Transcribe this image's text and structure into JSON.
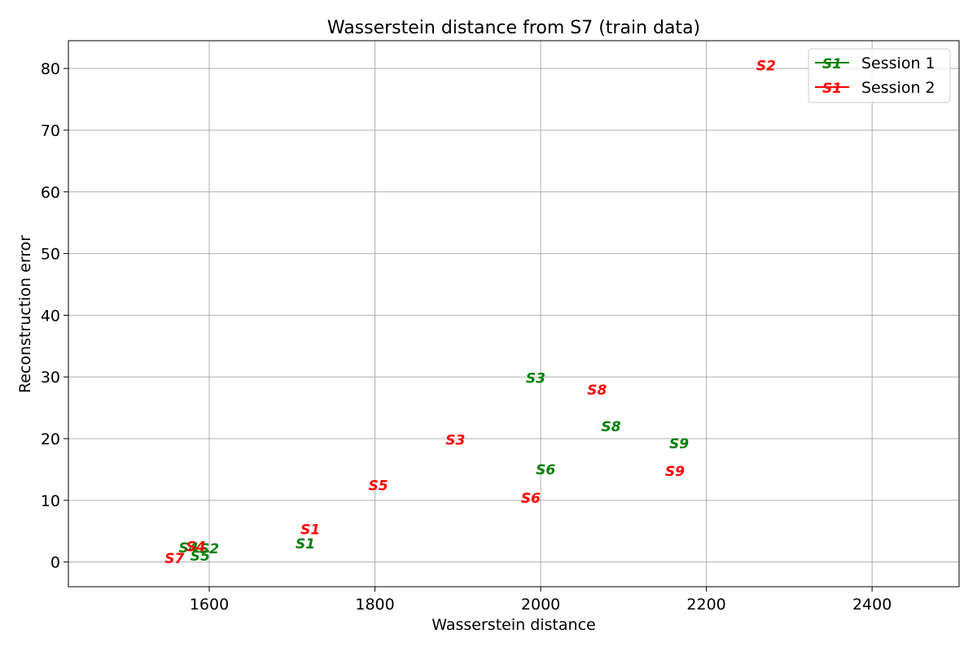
{
  "chart_data": {
    "type": "scatter",
    "title": "Wasserstein distance from S7 (train data)",
    "xlabel": "Wasserstein distance",
    "ylabel": "Reconstruction error",
    "xlim": [
      1430,
      2505
    ],
    "ylim": [
      -4,
      84.5
    ],
    "xticks": [
      1600,
      1800,
      2000,
      2200,
      2400
    ],
    "yticks": [
      0,
      10,
      20,
      30,
      40,
      50,
      60,
      70,
      80
    ],
    "grid": true,
    "legend_position": "top-right",
    "legend_marker_text": "S1",
    "series": [
      {
        "name": "Session 1",
        "color": "#008000",
        "points": [
          {
            "label": "S1",
            "x": 1716,
            "y": 3.0
          },
          {
            "label": "S2",
            "x": 1600,
            "y": 2.2
          },
          {
            "label": "S3",
            "x": 1994,
            "y": 29.8
          },
          {
            "label": "S4",
            "x": 1575,
            "y": 2.3
          },
          {
            "label": "S5",
            "x": 1589,
            "y": 1.0
          },
          {
            "label": "S6",
            "x": 2006,
            "y": 15.0
          },
          {
            "label": "S8",
            "x": 2085,
            "y": 22.0
          },
          {
            "label": "S9",
            "x": 2167,
            "y": 19.2
          }
        ]
      },
      {
        "name": "Session 2",
        "color": "#ff0000",
        "points": [
          {
            "label": "S1",
            "x": 1722,
            "y": 5.3
          },
          {
            "label": "S2",
            "x": 2272,
            "y": 80.5
          },
          {
            "label": "S3",
            "x": 1897,
            "y": 19.8
          },
          {
            "label": "S4",
            "x": 1584,
            "y": 2.5
          },
          {
            "label": "S5",
            "x": 1804,
            "y": 12.4
          },
          {
            "label": "S6",
            "x": 1988,
            "y": 10.4
          },
          {
            "label": "S7",
            "x": 1558,
            "y": 0.6
          },
          {
            "label": "S8",
            "x": 2068,
            "y": 27.9
          },
          {
            "label": "S9",
            "x": 2162,
            "y": 14.7
          }
        ]
      }
    ]
  }
}
